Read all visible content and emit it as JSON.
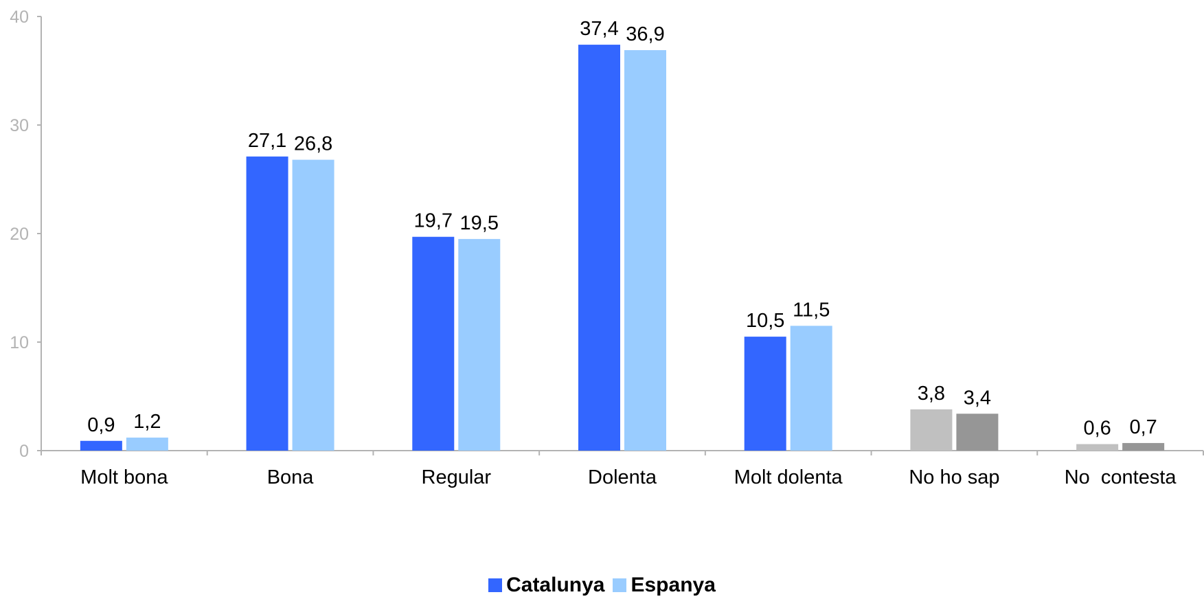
{
  "chart_data": {
    "type": "bar",
    "categories": [
      "Molt bona",
      "Bona",
      "Regular",
      "Dolenta",
      "Molt dolenta",
      "No ho sap",
      "No  contesta"
    ],
    "series": [
      {
        "name": "Catalunya",
        "values": [
          0.9,
          27.1,
          19.7,
          37.4,
          10.5,
          3.8,
          0.6
        ],
        "labels": [
          "0,9",
          "27,1",
          "19,7",
          "37,4",
          "10,5",
          "3,8",
          "0,6"
        ],
        "color": "#3366ff",
        "alt_color": "#c0c0c0"
      },
      {
        "name": "Espanya",
        "values": [
          1.2,
          26.8,
          19.5,
          36.9,
          11.5,
          3.4,
          0.7
        ],
        "labels": [
          "1,2",
          "26,8",
          "19,5",
          "36,9",
          "11,5",
          "3,4",
          "0,7"
        ],
        "color": "#99ccff",
        "alt_color": "#969696"
      }
    ],
    "gray_categories": [
      "No ho sap",
      "No  contesta"
    ],
    "ylim": [
      0,
      40
    ],
    "yticks": [
      "0",
      "10",
      "20",
      "30",
      "40"
    ],
    "ytick_values": [
      0,
      10,
      20,
      30,
      40
    ],
    "grid": false,
    "legend_position": "bottom-center",
    "axis_color": "#b3b3b3"
  }
}
